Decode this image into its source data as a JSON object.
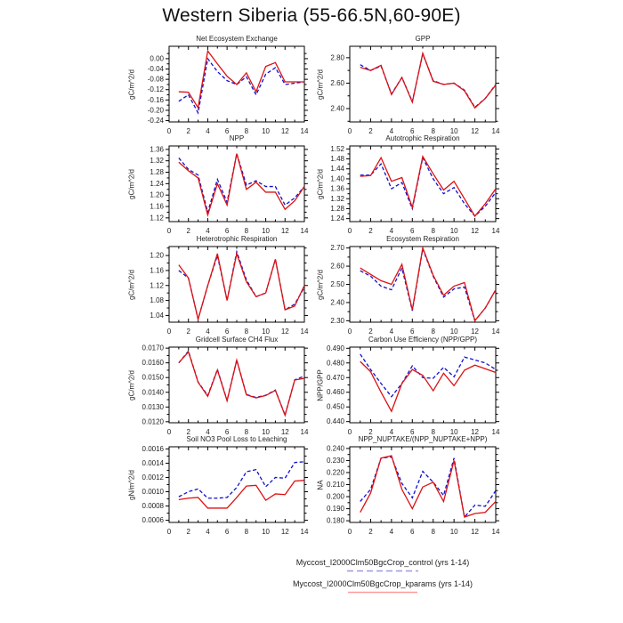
{
  "title": "Western Siberia (55-66.5N,60-90E)",
  "legend": {
    "control_label": "Myccost_I2000Clm50BgcCrop_control (yrs 1-14)",
    "kparams_label": "Myccost_I2000Clm50BgcCrop_kparams (yrs 1-14)",
    "control_line_color": "#9999dd",
    "kparams_line_color": "#ff9999"
  },
  "colors": {
    "control_line": "#1111cc",
    "kparams_line": "#dd1111",
    "frame": "#000000"
  },
  "chart_data": {
    "type": "line",
    "x": [
      1,
      2,
      3,
      4,
      5,
      6,
      7,
      8,
      9,
      10,
      11,
      12,
      13,
      14
    ],
    "xlim": [
      0,
      14
    ],
    "x_tick_values": [
      0,
      2,
      4,
      6,
      8,
      10,
      12,
      14
    ],
    "series_names": [
      "Myccost_I2000Clm50BgcCrop_control (yrs 1-14)",
      "Myccost_I2000Clm50BgcCrop_kparams (yrs 1-14)"
    ],
    "subplots": [
      {
        "id": "nee",
        "title": "Net Ecosystem Exchange",
        "ylabel": "gC/m^2/d",
        "ylim": [
          -0.245,
          0.048
        ],
        "y_tick_values": [
          0.0,
          -0.04,
          -0.08,
          -0.12,
          -0.16,
          -0.2,
          -0.24
        ],
        "decimals": 2,
        "control": [
          -0.165,
          -0.14,
          -0.21,
          0.0,
          -0.05,
          -0.085,
          -0.1,
          -0.07,
          -0.14,
          -0.06,
          -0.035,
          -0.1,
          -0.095,
          -0.09
        ],
        "kparams": [
          -0.128,
          -0.13,
          -0.19,
          0.03,
          -0.02,
          -0.068,
          -0.1,
          -0.055,
          -0.128,
          -0.03,
          -0.015,
          -0.09,
          -0.09,
          -0.09
        ]
      },
      {
        "id": "gpp",
        "title": "GPP",
        "ylabel": "gC/m^2/d",
        "ylim": [
          2.295,
          2.89
        ],
        "y_tick_values": [
          2.8,
          2.6,
          2.4
        ],
        "decimals": 2,
        "control": [
          2.745,
          2.7,
          2.735,
          2.515,
          2.645,
          2.455,
          2.83,
          2.62,
          2.59,
          2.6,
          2.545,
          2.41,
          2.48,
          2.59
        ],
        "kparams": [
          2.725,
          2.7,
          2.74,
          2.51,
          2.645,
          2.45,
          2.835,
          2.615,
          2.59,
          2.6,
          2.54,
          2.405,
          2.48,
          2.585
        ]
      },
      {
        "id": "npp",
        "title": "NPP",
        "ylabel": "gC/m^2/d",
        "ylim": [
          1.107,
          1.372
        ],
        "y_tick_values": [
          1.36,
          1.32,
          1.28,
          1.24,
          1.2,
          1.16,
          1.12
        ],
        "decimals": 2,
        "control": [
          1.33,
          1.29,
          1.27,
          1.14,
          1.255,
          1.175,
          1.345,
          1.235,
          1.25,
          1.23,
          1.23,
          1.165,
          1.19,
          1.23
        ],
        "kparams": [
          1.315,
          1.285,
          1.26,
          1.13,
          1.24,
          1.165,
          1.345,
          1.22,
          1.245,
          1.21,
          1.21,
          1.15,
          1.18,
          1.23
        ]
      },
      {
        "id": "ar",
        "title": "Autotrophic Respiration",
        "ylabel": "gC/m^2/d",
        "ylim": [
          1.228,
          1.532
        ],
        "y_tick_values": [
          1.52,
          1.48,
          1.44,
          1.4,
          1.36,
          1.32,
          1.28,
          1.24
        ],
        "decimals": 2,
        "control": [
          1.415,
          1.415,
          1.46,
          1.36,
          1.385,
          1.28,
          1.485,
          1.4,
          1.34,
          1.365,
          1.3,
          1.25,
          1.29,
          1.345
        ],
        "kparams": [
          1.41,
          1.413,
          1.485,
          1.39,
          1.405,
          1.285,
          1.49,
          1.42,
          1.355,
          1.39,
          1.32,
          1.25,
          1.3,
          1.36
        ]
      },
      {
        "id": "hr",
        "title": "Heterotrophic Respiration",
        "ylabel": "gC/m^2/d",
        "ylim": [
          1.022,
          1.224
        ],
        "y_tick_values": [
          1.2,
          1.16,
          1.12,
          1.08,
          1.04
        ],
        "decimals": 2,
        "control": [
          1.16,
          1.14,
          1.03,
          1.12,
          1.2,
          1.08,
          1.21,
          1.135,
          1.09,
          1.1,
          1.19,
          1.055,
          1.07,
          1.115
        ],
        "kparams": [
          1.175,
          1.14,
          1.03,
          1.12,
          1.205,
          1.08,
          1.205,
          1.13,
          1.09,
          1.1,
          1.19,
          1.055,
          1.065,
          1.12
        ]
      },
      {
        "id": "er",
        "title": "Ecosystem Respiration",
        "ylabel": "gC/m^2/d",
        "ylim": [
          2.292,
          2.708
        ],
        "y_tick_values": [
          2.7,
          2.6,
          2.5,
          2.4,
          2.3
        ],
        "decimals": 2,
        "control": [
          2.575,
          2.545,
          2.49,
          2.47,
          2.59,
          2.355,
          2.695,
          2.545,
          2.43,
          2.475,
          2.485,
          2.3,
          2.37,
          2.47
        ],
        "kparams": [
          2.59,
          2.555,
          2.52,
          2.5,
          2.61,
          2.36,
          2.7,
          2.55,
          2.44,
          2.49,
          2.51,
          2.3,
          2.37,
          2.47
        ]
      },
      {
        "id": "ch4",
        "title": "Gridcell Surface CH4 Flux",
        "ylabel": "gC/m^2/d",
        "ylim": [
          0.01193,
          0.01707
        ],
        "y_tick_values": [
          0.017,
          0.016,
          0.015,
          0.014,
          0.013,
          0.012
        ],
        "decimals": 4,
        "control": [
          0.016,
          0.0168,
          0.0147,
          0.01378,
          0.01555,
          0.01345,
          0.0162,
          0.01385,
          0.01365,
          0.0138,
          0.01415,
          0.01245,
          0.01485,
          0.0151
        ],
        "kparams": [
          0.016,
          0.01675,
          0.01468,
          0.01372,
          0.01552,
          0.01342,
          0.01618,
          0.01383,
          0.01362,
          0.01378,
          0.01413,
          0.01243,
          0.01483,
          0.01495
        ]
      },
      {
        "id": "cue",
        "title": "Carbon Use Efficiency (NPP/GPP)",
        "ylabel": "NPP/GPP",
        "ylim": [
          0.4392,
          0.4908
        ],
        "y_tick_values": [
          0.49,
          0.48,
          0.47,
          0.46,
          0.45,
          0.44
        ],
        "decimals": 3,
        "control": [
          0.486,
          0.4755,
          0.466,
          0.457,
          0.466,
          0.478,
          0.47,
          0.4695,
          0.477,
          0.4705,
          0.484,
          0.482,
          0.48,
          0.4755
        ],
        "kparams": [
          0.481,
          0.474,
          0.46,
          0.447,
          0.466,
          0.4755,
          0.4715,
          0.461,
          0.473,
          0.4645,
          0.475,
          0.4785,
          0.476,
          0.4735
        ]
      },
      {
        "id": "no3_leaching",
        "title": "Soil NO3 Pool Loss to Leaching",
        "ylabel": "gN/m^2/d",
        "ylim": [
          0.00057,
          0.00163
        ],
        "y_tick_values": [
          0.0016,
          0.0014,
          0.0012,
          0.001,
          0.0008,
          0.0006
        ],
        "decimals": 4,
        "control": [
          0.00093,
          0.001,
          0.00104,
          0.00091,
          0.00091,
          0.00092,
          0.00106,
          0.00128,
          0.00131,
          0.00107,
          0.0012,
          0.00119,
          0.00141,
          0.00142
        ],
        "kparams": [
          0.00089,
          0.00091,
          0.00092,
          0.00077,
          0.00077,
          0.00077,
          0.00092,
          0.00108,
          0.00109,
          0.00088,
          0.00097,
          0.00096,
          0.00115,
          0.00116
        ]
      },
      {
        "id": "npp_nuptake_frac",
        "title": "NPP_NUPTAKE/(NPP_NUPTAKE+NPP)",
        "ylabel": "NA",
        "ylim": [
          0.1786,
          0.2414
        ],
        "y_tick_values": [
          0.24,
          0.23,
          0.22,
          0.21,
          0.2,
          0.19,
          0.18
        ],
        "decimals": 3,
        "control": [
          0.196,
          0.206,
          0.232,
          0.233,
          0.211,
          0.199,
          0.221,
          0.212,
          0.201,
          0.232,
          0.183,
          0.193,
          0.192,
          0.205
        ],
        "kparams": [
          0.187,
          0.203,
          0.232,
          0.234,
          0.206,
          0.19,
          0.208,
          0.212,
          0.196,
          0.23,
          0.183,
          0.186,
          0.187,
          0.196
        ]
      }
    ]
  }
}
